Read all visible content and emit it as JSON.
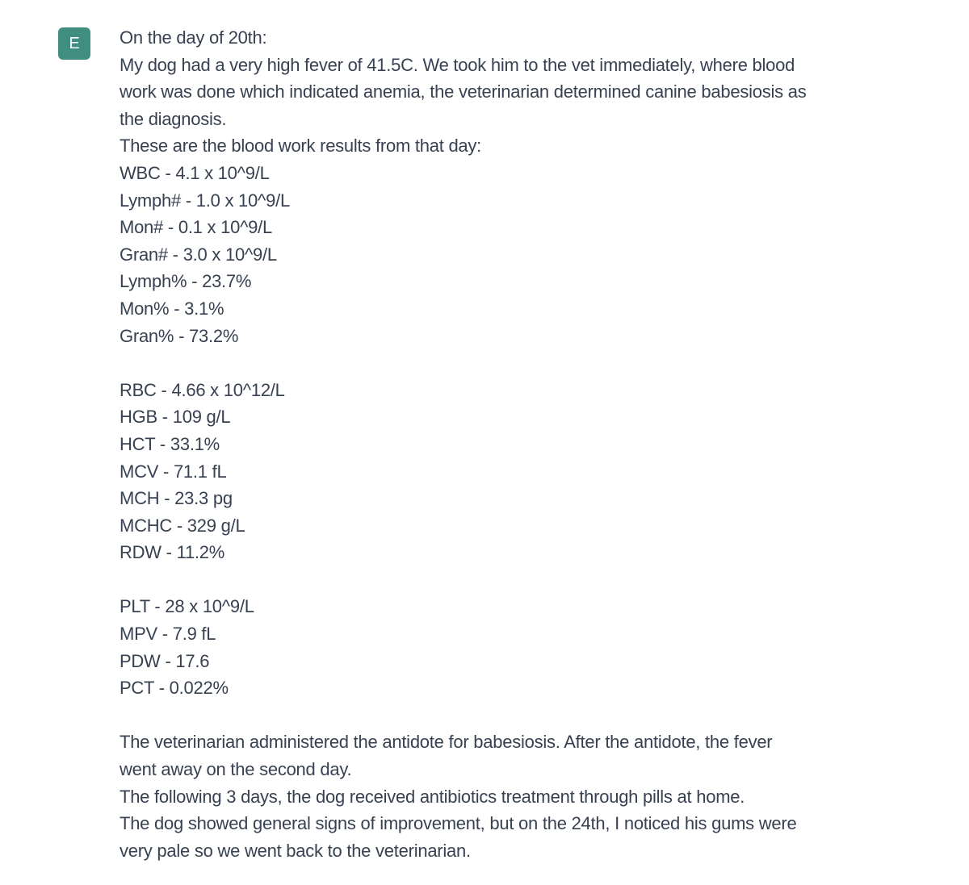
{
  "page": {
    "background_color": "#ffffff"
  },
  "message": {
    "avatar": {
      "initial": "E",
      "background_color": "#3f8e7f",
      "text_color": "#ffffff"
    },
    "text_color": "#374151",
    "lines": [
      "On the day of 20th:",
      "My dog had a very high fever of 41.5C. We took him to the vet immediately, where blood",
      "work was done which indicated anemia, the veterinarian determined canine babesiosis as",
      "the diagnosis.",
      "These are the blood work results from that day:",
      "WBC - 4.1 x 10^9/L",
      "Lymph# - 1.0 x 10^9/L",
      "Mon# - 0.1 x 10^9/L",
      "Gran# - 3.0 x 10^9/L",
      "Lymph% - 23.7%",
      "Mon% - 3.1%",
      "Gran% - 73.2%",
      "",
      "RBC - 4.66 x 10^12/L",
      "HGB - 109 g/L",
      "HCT - 33.1%",
      "MCV - 71.1 fL",
      "MCH - 23.3 pg",
      "MCHC - 329 g/L",
      "RDW - 11.2%",
      "",
      "PLT - 28 x 10^9/L",
      "MPV - 7.9 fL",
      "PDW - 17.6",
      "PCT - 0.022%",
      "",
      "The veterinarian administered the antidote for babesiosis. After the antidote, the fever",
      "went away on the second day.",
      "The following 3 days, the dog received antibiotics treatment through pills at home.",
      "The dog showed general signs of improvement, but on the 24th, I noticed his gums were",
      "very pale so we went back to the veterinarian."
    ]
  }
}
